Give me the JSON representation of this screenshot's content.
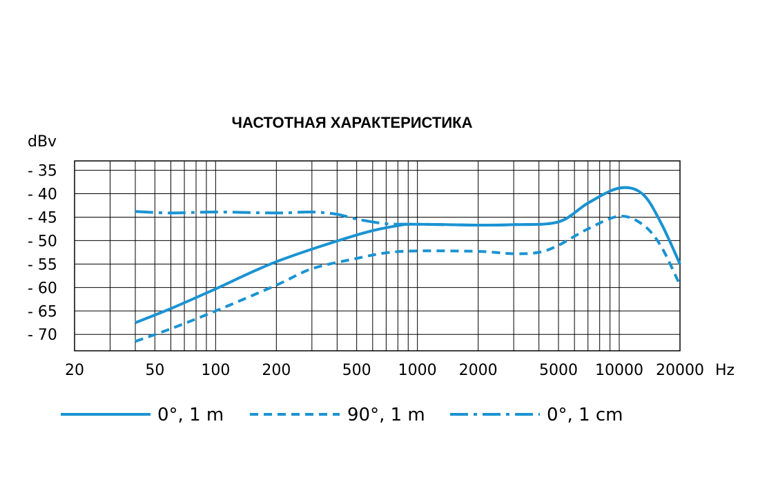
{
  "chart_data": {
    "type": "line",
    "title": "ЧАСТОТНАЯ ХАРАКТЕРИСТИКА",
    "ylabel": "dBv",
    "xunit": "Hz",
    "xscale": "log",
    "xlim": [
      20,
      20000
    ],
    "ylim": [
      -73.5,
      -33
    ],
    "x_ticks": [
      20,
      50,
      100,
      200,
      500,
      1000,
      2000,
      5000,
      10000,
      20000
    ],
    "x_tick_labels": [
      "20",
      "50",
      "100",
      "200",
      "500",
      "1000",
      "2000",
      "5000",
      "10000",
      "20000"
    ],
    "y_ticks": [
      -35,
      -40,
      -45,
      -50,
      -55,
      -60,
      -65,
      -70
    ],
    "y_tick_labels": [
      "- 35",
      "- 40",
      "- 45",
      "- 50",
      "- 55",
      "- 60",
      "- 65",
      "- 70"
    ],
    "grid": true,
    "legend_position": "bottom",
    "line_color": "#1a93d2",
    "series": [
      {
        "name": "0°, 1 m",
        "style": "solid",
        "x": [
          40,
          60,
          100,
          200,
          500,
          800,
          1000,
          2000,
          3000,
          5000,
          7000,
          10000,
          13000,
          16000,
          20000
        ],
        "y": [
          -67.5,
          -64.5,
          -60.3,
          -54.5,
          -48.8,
          -46.8,
          -46.5,
          -46.7,
          -46.6,
          -46,
          -42,
          -38.8,
          -40,
          -46,
          -55
        ]
      },
      {
        "name": "90°, 1 m",
        "style": "dashed",
        "x": [
          40,
          60,
          100,
          200,
          300,
          500,
          700,
          1000,
          2000,
          3000,
          4000,
          5000,
          7000,
          10000,
          13000,
          16000,
          20000
        ],
        "y": [
          -71.5,
          -68.8,
          -65,
          -59.5,
          -56,
          -53.8,
          -52.6,
          -52.2,
          -52.3,
          -52.8,
          -52.5,
          -51,
          -47.5,
          -44.8,
          -46.5,
          -51,
          -59.5
        ]
      },
      {
        "name": "0°, 1 cm",
        "style": "dash-dot",
        "x": [
          40,
          60,
          100,
          200,
          300,
          400,
          500,
          700,
          1000,
          2000,
          3000,
          5000,
          7000,
          10000,
          13000,
          16000,
          20000
        ],
        "y": [
          -43.8,
          -44.1,
          -43.9,
          -44.1,
          -43.9,
          -44.4,
          -45.4,
          -46.4,
          -46.5,
          -46.7,
          -46.6,
          -46,
          -42,
          -38.8,
          -40,
          -46,
          -55
        ]
      }
    ]
  }
}
